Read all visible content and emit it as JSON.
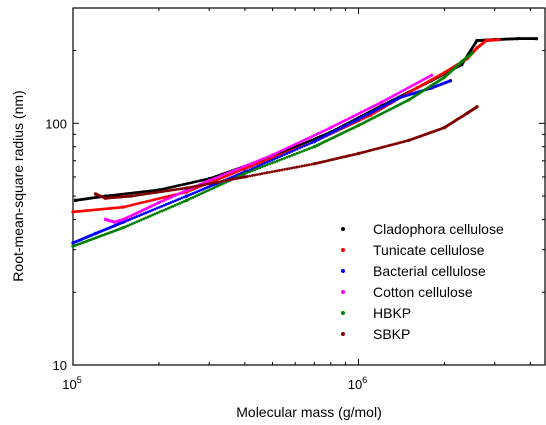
{
  "chart_data": {
    "type": "scatter",
    "title": "",
    "xlabel": "Molecular mass (g/mol)",
    "ylabel": "Root-mean-square radius (nm)",
    "x_scale": "log",
    "y_scale": "log",
    "xlim": [
      100000,
      4500000
    ],
    "ylim": [
      10,
      300
    ],
    "x_ticks": [
      {
        "value": 100000,
        "base": "10",
        "exp": "5"
      },
      {
        "value": 1000000,
        "base": "10",
        "exp": "6"
      }
    ],
    "y_ticks": [
      {
        "value": 10,
        "label": "10"
      },
      {
        "value": 100,
        "label": "100"
      }
    ],
    "grid": false,
    "legend_position": "bottom-right",
    "series": [
      {
        "name": "Cladophora cellulose",
        "color": "#000000",
        "x": [
          102000,
          130000,
          200000,
          300000,
          500000,
          800000,
          1200000,
          1800000,
          2300000,
          2600000,
          3000000,
          3600000,
          4200000
        ],
        "y": [
          48,
          50,
          53,
          59,
          73,
          92,
          118,
          150,
          175,
          220,
          222,
          224,
          224
        ]
      },
      {
        "name": "Tunicate cellulose",
        "color": "#ff0000",
        "x": [
          100000,
          150000,
          250000,
          400000,
          700000,
          1100000,
          1600000,
          2000000,
          2400000,
          2600000,
          2800000,
          3100000
        ],
        "y": [
          43,
          45,
          52,
          65,
          84,
          108,
          140,
          162,
          185,
          205,
          220,
          222
        ]
      },
      {
        "name": "Bacterial cellulose",
        "color": "#0000ff",
        "x": [
          100000,
          120000,
          150000,
          250000,
          400000,
          700000,
          1000000,
          1400000,
          1800000,
          2100000
        ],
        "y": [
          32,
          35,
          39,
          50,
          63,
          84,
          104,
          128,
          140,
          150
        ]
      },
      {
        "name": "Cotton cellulose",
        "color": "#ff00ff",
        "x": [
          130000,
          140000,
          150000,
          200000,
          300000,
          500000,
          800000,
          1200000,
          1800000
        ],
        "y": [
          40,
          39,
          40,
          47,
          58,
          74,
          96,
          122,
          158
        ]
      },
      {
        "name": "HBKP",
        "color": "#008000",
        "x": [
          100000,
          150000,
          250000,
          400000,
          700000,
          1000000,
          1500000,
          2000000,
          2300000,
          2500000
        ],
        "y": [
          31,
          37,
          48,
          62,
          80,
          98,
          125,
          155,
          180,
          195
        ]
      },
      {
        "name": "SBKP",
        "color": "#800000",
        "x": [
          120000,
          130000,
          160000,
          250000,
          400000,
          700000,
          1000000,
          1500000,
          2000000,
          2400000,
          2600000
        ],
        "y": [
          51,
          49,
          50,
          54,
          60,
          68,
          75,
          85,
          96,
          110,
          117
        ]
      }
    ]
  }
}
